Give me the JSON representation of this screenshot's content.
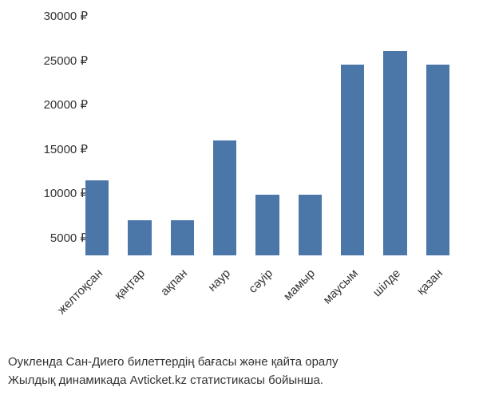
{
  "chart": {
    "type": "bar",
    "currency_symbol": "₽",
    "categories": [
      "желтоқсан",
      "қаңтар",
      "ақпан",
      "наур",
      "сәуір",
      "мамыр",
      "маусым",
      "шілде",
      "қазан"
    ],
    "values": [
      11500,
      7000,
      7000,
      16000,
      9800,
      9800,
      24500,
      26000,
      24500
    ],
    "bar_color": "#4a77a8",
    "background_color": "#ffffff",
    "ylim": [
      3000,
      30000
    ],
    "yticks": [
      5000,
      10000,
      15000,
      20000,
      25000,
      30000
    ],
    "ytick_labels": [
      "5000 ₽",
      "10000 ₽",
      "15000 ₽",
      "20000 ₽",
      "25000 ₽",
      "30000 ₽"
    ],
    "label_fontsize": 15,
    "axis_color": "#333333",
    "bar_width_ratio": 0.55,
    "x_label_rotation": -45,
    "caption_line1": "Оукленда Сан-Диего билеттердің бағасы және қайта оралу",
    "caption_line2": "Жылдық динамикада Avticket.kz статистикасы бойынша."
  }
}
